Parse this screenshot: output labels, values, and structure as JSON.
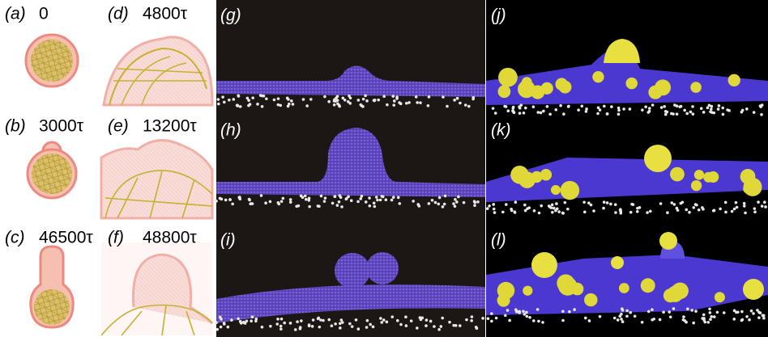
{
  "panels": [
    {
      "label": "(a)",
      "caption": "0"
    },
    {
      "label": "(b)",
      "caption": "3000τ"
    },
    {
      "label": "(c)",
      "caption": "46500τ"
    },
    {
      "label": "(d)",
      "caption": "4800τ"
    },
    {
      "label": "(e)",
      "caption": "13200τ"
    },
    {
      "label": "(f)",
      "caption": "48800τ"
    },
    {
      "label": "(g)"
    },
    {
      "label": "(h)"
    },
    {
      "label": "(i)"
    },
    {
      "label": "(j)"
    },
    {
      "label": "(k)"
    },
    {
      "label": "(l)"
    }
  ]
}
